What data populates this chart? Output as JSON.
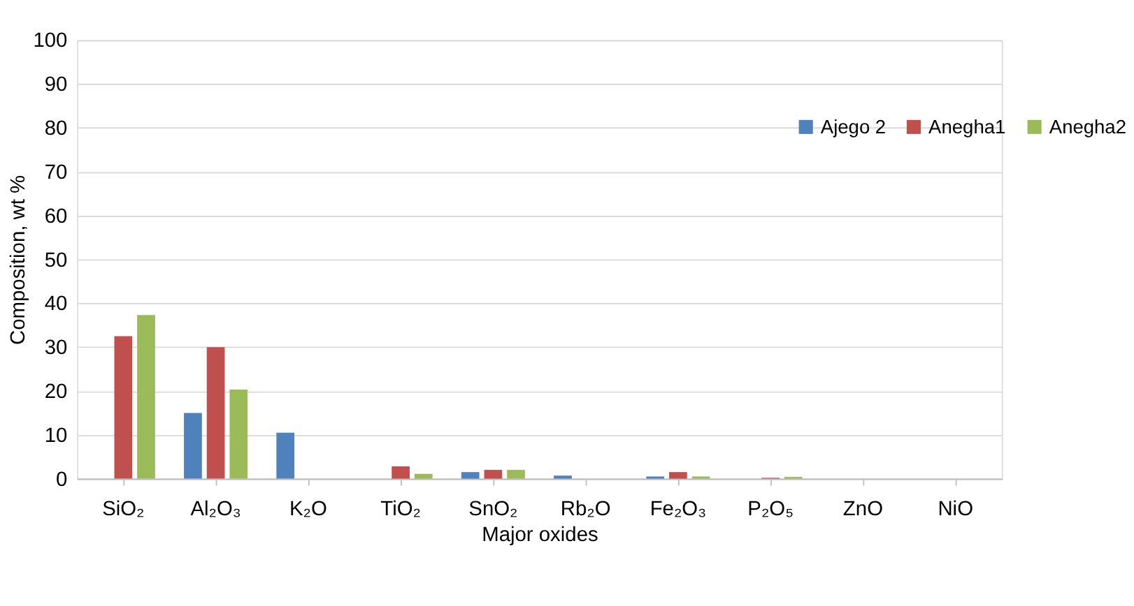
{
  "chart_data": {
    "type": "bar",
    "xlabel": "Major oxides",
    "ylabel": "Composition, wt %",
    "categories": [
      "SiO₂",
      "Al₂O₃",
      "K₂O",
      "TiO₂",
      "SnO₂",
      "Rb₂O",
      "Fe₂O₃",
      "P₂O₅",
      "ZnO",
      "NiO"
    ],
    "series": [
      {
        "name": "Ajego 2",
        "color": "#4f81bd",
        "values": [
          0,
          15.0,
          10.5,
          0,
          1.5,
          0.7,
          0.5,
          0,
          0,
          0
        ]
      },
      {
        "name": "Anegha1",
        "color": "#c0504d",
        "values": [
          32.5,
          30.0,
          0,
          2.8,
          2.0,
          0,
          1.5,
          0.2,
          0,
          0
        ]
      },
      {
        "name": "Anegha2",
        "color": "#9bbb59",
        "values": [
          37.3,
          20.3,
          0,
          1.1,
          2.0,
          0,
          0.5,
          0.4,
          0,
          0
        ]
      }
    ],
    "ylim": [
      0,
      100
    ],
    "yticks": [
      0,
      10,
      20,
      30,
      40,
      50,
      60,
      70,
      80,
      90,
      100
    ],
    "grid": "y",
    "legend": "top right"
  }
}
